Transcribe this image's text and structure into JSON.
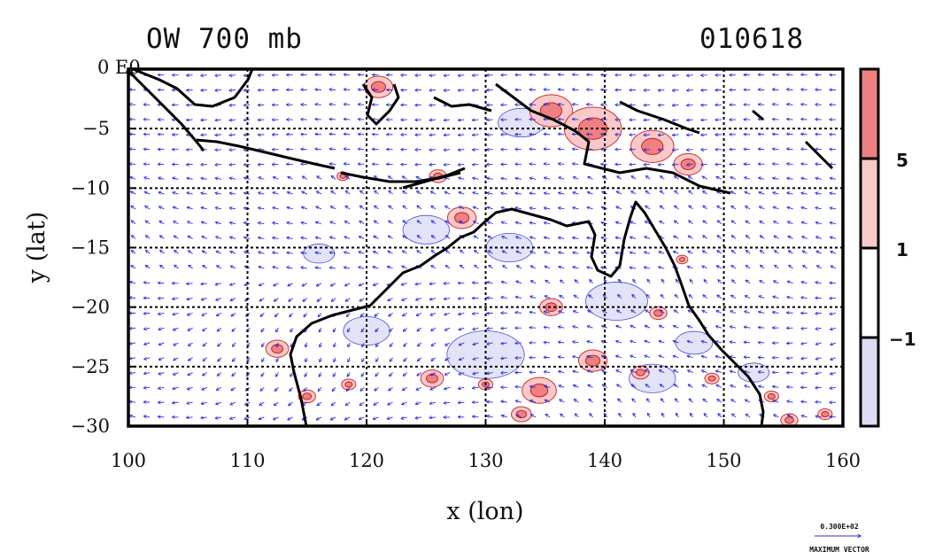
{
  "title_left": "OW 700 mb",
  "title_right": "010618",
  "corner_label": "0 E0",
  "xlabel": "x (lon)",
  "ylabel": "y (lat)",
  "x_ticks": [
    "100",
    "110",
    "120",
    "130",
    "140",
    "150",
    "160"
  ],
  "y_ticks": [
    "0",
    "−5",
    "−10",
    "−15",
    "−20",
    "−25",
    "−30"
  ],
  "colorbar": {
    "levels": [
      "5",
      "1",
      "−1"
    ],
    "colors": {
      "strong_pos": "#f08080",
      "weak_pos": "#f9c9c9",
      "neutral": "#ffffff",
      "neg": "#dcdcf5"
    }
  },
  "vector_ref": {
    "value": "0.300E+02",
    "label": "MAXIMUM VECTOR"
  },
  "chart_data": {
    "type": "heatmap",
    "title": "OW 700 mb",
    "date_label": "010618",
    "xlabel": "x (lon)",
    "ylabel": "y (lat)",
    "xlim": [
      100,
      160
    ],
    "ylim": [
      -30,
      0
    ],
    "x_ticks": [
      100,
      110,
      120,
      130,
      140,
      150,
      160
    ],
    "y_ticks": [
      0,
      -5,
      -10,
      -15,
      -20,
      -25,
      -30
    ],
    "grid": true,
    "colorbar_levels": [
      -1,
      1,
      5
    ],
    "positive_blobs": [
      {
        "lon": 128.0,
        "lat": -12.5,
        "r": 1.0
      },
      {
        "lon": 135.5,
        "lat": -3.5,
        "r": 1.5
      },
      {
        "lon": 139.0,
        "lat": -5.0,
        "r": 2.0
      },
      {
        "lon": 144.0,
        "lat": -6.5,
        "r": 1.5
      },
      {
        "lon": 147.0,
        "lat": -8.0,
        "r": 1.0
      },
      {
        "lon": 121.0,
        "lat": -1.5,
        "r": 1.0
      },
      {
        "lon": 112.5,
        "lat": -23.5,
        "r": 0.8
      },
      {
        "lon": 115.0,
        "lat": -27.5,
        "r": 0.6
      },
      {
        "lon": 118.5,
        "lat": -26.5,
        "r": 0.5
      },
      {
        "lon": 125.5,
        "lat": -26.0,
        "r": 0.8
      },
      {
        "lon": 134.5,
        "lat": -27.0,
        "r": 1.2
      },
      {
        "lon": 139.0,
        "lat": -24.5,
        "r": 1.0
      },
      {
        "lon": 133.0,
        "lat": -29.0,
        "r": 0.7
      },
      {
        "lon": 135.5,
        "lat": -20.0,
        "r": 0.8
      },
      {
        "lon": 144.5,
        "lat": -20.5,
        "r": 0.6
      },
      {
        "lon": 149.0,
        "lat": -26.0,
        "r": 0.5
      },
      {
        "lon": 154.0,
        "lat": -27.5,
        "r": 0.5
      },
      {
        "lon": 155.5,
        "lat": -29.5,
        "r": 0.6
      },
      {
        "lon": 158.5,
        "lat": -29.0,
        "r": 0.5
      },
      {
        "lon": 130.0,
        "lat": -26.5,
        "r": 0.5
      },
      {
        "lon": 146.5,
        "lat": -16.0,
        "r": 0.4
      },
      {
        "lon": 126.0,
        "lat": -9.0,
        "r": 0.6
      },
      {
        "lon": 118.0,
        "lat": -9.0,
        "r": 0.4
      },
      {
        "lon": 143.0,
        "lat": -25.5,
        "r": 0.6
      }
    ],
    "negative_blobs": [
      {
        "lon": 133.0,
        "lat": -4.5,
        "r": 1.5
      },
      {
        "lon": 141.0,
        "lat": -19.5,
        "r": 2.0
      },
      {
        "lon": 130.0,
        "lat": -24.0,
        "r": 2.5
      },
      {
        "lon": 120.0,
        "lat": -22.0,
        "r": 1.5
      },
      {
        "lon": 125.0,
        "lat": -13.5,
        "r": 1.5
      },
      {
        "lon": 144.0,
        "lat": -26.0,
        "r": 1.5
      },
      {
        "lon": 132.0,
        "lat": -15.0,
        "r": 1.5
      },
      {
        "lon": 116.0,
        "lat": -15.5,
        "r": 1.0
      },
      {
        "lon": 147.5,
        "lat": -23.0,
        "r": 1.2
      },
      {
        "lon": 152.5,
        "lat": -25.5,
        "r": 1.0
      }
    ]
  }
}
